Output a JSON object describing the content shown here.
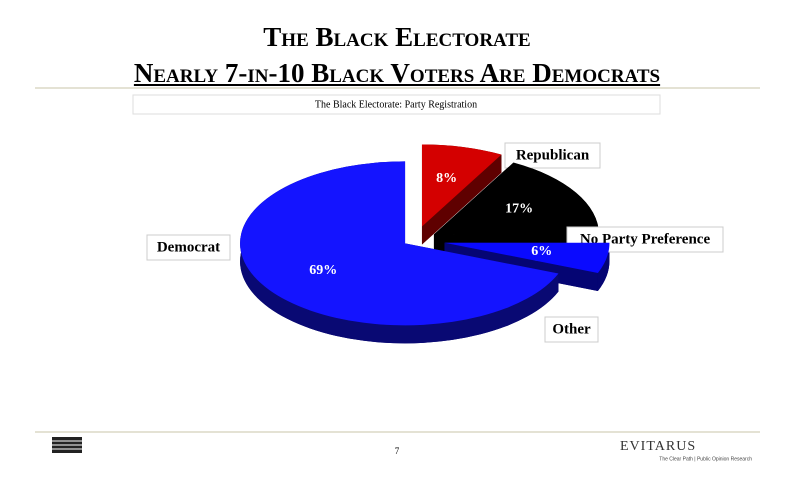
{
  "slide": {
    "title": "The Black Electorate",
    "subtitle": "Nearly 7-in-10 Black Voters Are Democrats",
    "page_number": "7",
    "footer_brand": "EVITARUS",
    "footer_tagline": "The Clear Path | Public Opinion Research"
  },
  "chart_data": {
    "type": "pie",
    "title": "The Black Electorate: Party Registration",
    "categories": [
      "Republican",
      "No Party Preference",
      "Other",
      "Democrat"
    ],
    "values": [
      8,
      17,
      6,
      69
    ],
    "value_labels": [
      "8%",
      "17%",
      "6%",
      "69%"
    ],
    "colors": [
      "#d40000",
      "#000000",
      "#0a0aff",
      "#1414ff"
    ]
  }
}
